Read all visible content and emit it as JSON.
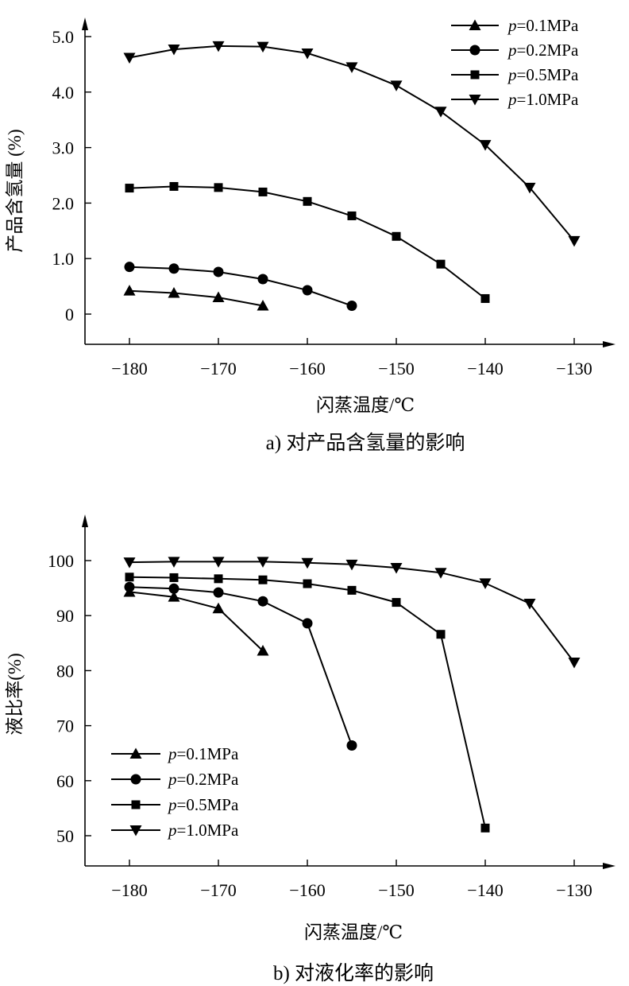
{
  "chart_data": [
    {
      "type": "line",
      "caption": "a) 对产品含氢量的影响",
      "xlabel": "闪蒸温度/℃",
      "ylabel": "产品含氢量 (%)",
      "xlim": [
        -185,
        -126
      ],
      "ylim": [
        -0.55,
        5.45
      ],
      "x_ticks": [
        -180,
        -170,
        -160,
        -150,
        -140,
        -130
      ],
      "x_tick_labels": [
        "−180",
        "−170",
        "−160",
        "−150",
        "−140",
        "−130"
      ],
      "y_ticks": [
        0,
        1,
        2,
        3,
        4,
        5
      ],
      "y_tick_labels": [
        "0",
        "1.0",
        "2.0",
        "3.0",
        "4.0",
        "5.0"
      ],
      "grid": false,
      "legend_position": "top-right",
      "series": [
        {
          "name": "p=0.1MPa",
          "marker": "triangle-up",
          "x": [
            -180,
            -175,
            -170,
            -165
          ],
          "y": [
            0.42,
            0.38,
            0.3,
            0.15
          ]
        },
        {
          "name": "p=0.2MPa",
          "marker": "circle",
          "x": [
            -180,
            -175,
            -170,
            -165,
            -160,
            -155
          ],
          "y": [
            0.85,
            0.82,
            0.76,
            0.63,
            0.43,
            0.15
          ]
        },
        {
          "name": "p=0.5MPa",
          "marker": "square",
          "x": [
            -180,
            -175,
            -170,
            -165,
            -160,
            -155,
            -150,
            -145,
            -140
          ],
          "y": [
            2.27,
            2.3,
            2.28,
            2.2,
            2.03,
            1.77,
            1.4,
            0.9,
            0.28
          ]
        },
        {
          "name": "p=1.0MPa",
          "marker": "triangle-down",
          "x": [
            -180,
            -175,
            -170,
            -165,
            -160,
            -155,
            -150,
            -145,
            -140,
            -135,
            -130
          ],
          "y": [
            4.62,
            4.77,
            4.83,
            4.82,
            4.7,
            4.45,
            4.12,
            3.65,
            3.05,
            2.28,
            1.32
          ]
        }
      ]
    },
    {
      "type": "line",
      "caption": "b) 对液化率的影响",
      "xlabel": "闪蒸温度/℃",
      "ylabel": "液比率(%)",
      "xlim": [
        -185,
        -126
      ],
      "ylim": [
        45,
        107
      ],
      "x_ticks": [
        -180,
        -170,
        -160,
        -150,
        -140,
        -130
      ],
      "x_tick_labels": [
        "−180",
        "−170",
        "−160",
        "−150",
        "−140",
        "−130"
      ],
      "y_ticks": [
        50,
        60,
        70,
        80,
        90,
        100
      ],
      "y_tick_labels": [
        "50",
        "60",
        "70",
        "80",
        "90",
        "100"
      ],
      "grid": false,
      "legend_position": "bottom-left",
      "series": [
        {
          "name": "p=0.1MPa",
          "marker": "triangle-up",
          "x": [
            -180,
            -175,
            -170,
            -165
          ],
          "y": [
            94.3,
            93.4,
            91.3,
            83.6
          ]
        },
        {
          "name": "p=0.2MPa",
          "marker": "circle",
          "x": [
            -180,
            -175,
            -170,
            -165,
            -160,
            -155
          ],
          "y": [
            95.2,
            94.9,
            94.2,
            92.6,
            88.6,
            66.4
          ]
        },
        {
          "name": "p=0.5MPa",
          "marker": "square",
          "x": [
            -180,
            -175,
            -170,
            -165,
            -160,
            -155,
            -150,
            -145,
            -140
          ],
          "y": [
            97.0,
            96.9,
            96.7,
            96.5,
            95.8,
            94.6,
            92.4,
            86.6,
            51.4
          ]
        },
        {
          "name": "p=1.0MPa",
          "marker": "triangle-down",
          "x": [
            -180,
            -175,
            -170,
            -165,
            -160,
            -155,
            -150,
            -145,
            -140,
            -135,
            -130
          ],
          "y": [
            99.7,
            99.8,
            99.8,
            99.8,
            99.6,
            99.3,
            98.7,
            97.8,
            95.9,
            92.2,
            81.5
          ]
        }
      ]
    }
  ]
}
